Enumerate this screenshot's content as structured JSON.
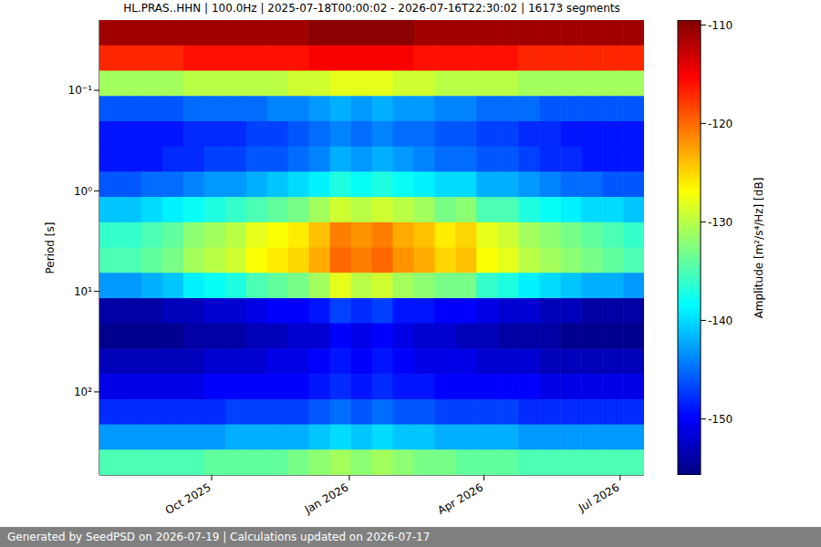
{
  "chart_data": {
    "type": "heatmap",
    "title": "HL.PRAS..HHN | 100.0Hz | 2025-07-18T00:00:02 - 2026-07-16T22:30:02 | 16173 segments",
    "footer": "Generated by SeedPSD on 2026-07-19 | Calculations updated on 2026-07-17",
    "y_label": "Period [s]",
    "log": "y",
    "grid": true,
    "x": [
      "2025-07-25",
      "2025-08-08",
      "2025-08-22",
      "2025-09-05",
      "2025-09-19",
      "2025-10-03",
      "2025-10-17",
      "2025-10-31",
      "2025-11-14",
      "2025-11-28",
      "2025-12-12",
      "2025-12-26",
      "2026-01-09",
      "2026-01-23",
      "2026-02-06",
      "2026-02-20",
      "2026-03-06",
      "2026-03-20",
      "2026-04-03",
      "2026-04-17",
      "2026-05-01",
      "2026-05-15",
      "2026-05-29",
      "2026-06-12",
      "2026-06-26",
      "2026-07-10"
    ],
    "y": [
      0.0267,
      0.0477,
      0.0851,
      0.152,
      0.271,
      0.483,
      0.861,
      1.535,
      2.74,
      4.89,
      8.72,
      15.6,
      27.7,
      49.5,
      88.3,
      158,
      281,
      501
    ],
    "xlim": [
      "2025-07-18T00:00:02",
      "2026-07-16T22:30:02"
    ],
    "xticks": [
      {
        "value": "2025-10-01",
        "label": "Oct 2025"
      },
      {
        "value": "2026-01-01",
        "label": "Jan 2026"
      },
      {
        "value": "2026-04-01",
        "label": "Apr 2026"
      },
      {
        "value": "2026-07-01",
        "label": "Jul 2026"
      }
    ],
    "ylim": [
      0.02,
      670
    ],
    "yticks": [
      {
        "value": 0.1,
        "label": "10⁻¹"
      },
      {
        "value": 1,
        "label": "10⁰"
      },
      {
        "value": 10,
        "label": "10¹"
      },
      {
        "value": 100,
        "label": "10²"
      }
    ],
    "values": [
      [
        -111,
        -111,
        -111,
        -111,
        -111,
        -111,
        -111,
        -111,
        -111,
        -111,
        -110,
        -110,
        -110,
        -110,
        -110,
        -111,
        -111,
        -111,
        -111,
        -111,
        -111,
        -111,
        -111,
        -111,
        -111,
        -111
      ],
      [
        -117,
        -117,
        -117,
        -117,
        -116,
        -116,
        -116,
        -116,
        -116,
        -116,
        -115,
        -115,
        -115,
        -115,
        -115,
        -116,
        -116,
        -116,
        -116,
        -116,
        -117,
        -117,
        -117,
        -117,
        -117,
        -117
      ],
      [
        -131,
        -131,
        -131,
        -131,
        -130,
        -130,
        -130,
        -130,
        -130,
        -129,
        -129,
        -128,
        -128,
        -128,
        -129,
        -129,
        -130,
        -130,
        -130,
        -130,
        -131,
        -131,
        -131,
        -131,
        -131,
        -131
      ],
      [
        -146,
        -146,
        -146,
        -146,
        -145,
        -145,
        -145,
        -145,
        -144,
        -144,
        -143,
        -142,
        -143,
        -142,
        -143,
        -143,
        -144,
        -144,
        -145,
        -145,
        -145,
        -146,
        -146,
        -146,
        -146,
        -146
      ],
      [
        -149,
        -149,
        -149,
        -149,
        -148,
        -148,
        -148,
        -147,
        -147,
        -146,
        -145,
        -144,
        -145,
        -144,
        -145,
        -145,
        -146,
        -146,
        -147,
        -147,
        -148,
        -148,
        -149,
        -149,
        -149,
        -149
      ],
      [
        -149,
        -149,
        -149,
        -148,
        -148,
        -147,
        -147,
        -146,
        -146,
        -145,
        -144,
        -142,
        -143,
        -142,
        -143,
        -144,
        -145,
        -145,
        -146,
        -146,
        -147,
        -148,
        -148,
        -149,
        -149,
        -149
      ],
      [
        -146,
        -146,
        -145,
        -145,
        -144,
        -143,
        -143,
        -142,
        -141,
        -140,
        -139,
        -137,
        -138,
        -137,
        -138,
        -139,
        -140,
        -140,
        -142,
        -142,
        -143,
        -144,
        -145,
        -145,
        -146,
        -146
      ],
      [
        -141,
        -141,
        -140,
        -139,
        -138,
        -137,
        -136,
        -135,
        -134,
        -133,
        -131,
        -129,
        -130,
        -129,
        -130,
        -131,
        -133,
        -132,
        -135,
        -135,
        -137,
        -138,
        -139,
        -140,
        -140,
        -141
      ],
      [
        -136,
        -136,
        -135,
        -134,
        -132,
        -131,
        -130,
        -128,
        -127,
        -126,
        -124,
        -121,
        -122,
        -121,
        -123,
        -124,
        -126,
        -125,
        -128,
        -129,
        -131,
        -132,
        -133,
        -134,
        -135,
        -136
      ],
      [
        -135,
        -135,
        -134,
        -133,
        -131,
        -130,
        -129,
        -127,
        -126,
        -125,
        -123,
        -120,
        -121,
        -120,
        -122,
        -123,
        -125,
        -124,
        -127,
        -128,
        -130,
        -131,
        -132,
        -133,
        -134,
        -135
      ],
      [
        -143,
        -143,
        -142,
        -141,
        -139,
        -138,
        -137,
        -135,
        -134,
        -133,
        -131,
        -128,
        -130,
        -129,
        -131,
        -132,
        -133,
        -133,
        -136,
        -137,
        -139,
        -140,
        -141,
        -142,
        -142,
        -143
      ],
      [
        -154,
        -154,
        -154,
        -153,
        -153,
        -152,
        -152,
        -151,
        -150,
        -150,
        -149,
        -147,
        -148,
        -147,
        -149,
        -149,
        -150,
        -150,
        -151,
        -152,
        -152,
        -153,
        -153,
        -154,
        -154,
        -154
      ],
      [
        -155,
        -155,
        -155,
        -155,
        -154,
        -154,
        -154,
        -153,
        -153,
        -152,
        -152,
        -150,
        -151,
        -150,
        -151,
        -152,
        -152,
        -153,
        -153,
        -154,
        -154,
        -154,
        -155,
        -155,
        -155,
        -155
      ],
      [
        -153,
        -153,
        -153,
        -153,
        -153,
        -152,
        -152,
        -152,
        -151,
        -151,
        -150,
        -149,
        -150,
        -149,
        -150,
        -151,
        -151,
        -151,
        -152,
        -152,
        -152,
        -153,
        -153,
        -153,
        -153,
        -153
      ],
      [
        -151,
        -151,
        -151,
        -151,
        -151,
        -150,
        -150,
        -150,
        -150,
        -150,
        -149,
        -148,
        -149,
        -148,
        -149,
        -149,
        -150,
        -150,
        -150,
        -150,
        -150,
        -151,
        -151,
        -151,
        -151,
        -151
      ],
      [
        -148,
        -148,
        -148,
        -148,
        -148,
        -148,
        -147,
        -147,
        -147,
        -147,
        -146,
        -145,
        -146,
        -145,
        -146,
        -146,
        -147,
        -147,
        -147,
        -147,
        -148,
        -148,
        -148,
        -148,
        -148,
        -148
      ],
      [
        -143,
        -143,
        -143,
        -143,
        -143,
        -143,
        -142,
        -142,
        -142,
        -142,
        -141,
        -140,
        -141,
        -140,
        -141,
        -141,
        -142,
        -142,
        -142,
        -142,
        -143,
        -143,
        -143,
        -143,
        -143,
        -143
      ],
      [
        -135,
        -135,
        -135,
        -135,
        -135,
        -134,
        -134,
        -134,
        -134,
        -133,
        -132,
        -131,
        -132,
        -131,
        -132,
        -133,
        -133,
        -134,
        -134,
        -134,
        -135,
        -135,
        -135,
        -135,
        -135,
        -135
      ]
    ],
    "colorbar": {
      "label": "Amplitude [m²/s⁴/Hz] [dB]",
      "range": [
        -155.7,
        -109.5
      ],
      "ticks": [
        -150,
        -140,
        -130,
        -120,
        -110
      ]
    }
  }
}
